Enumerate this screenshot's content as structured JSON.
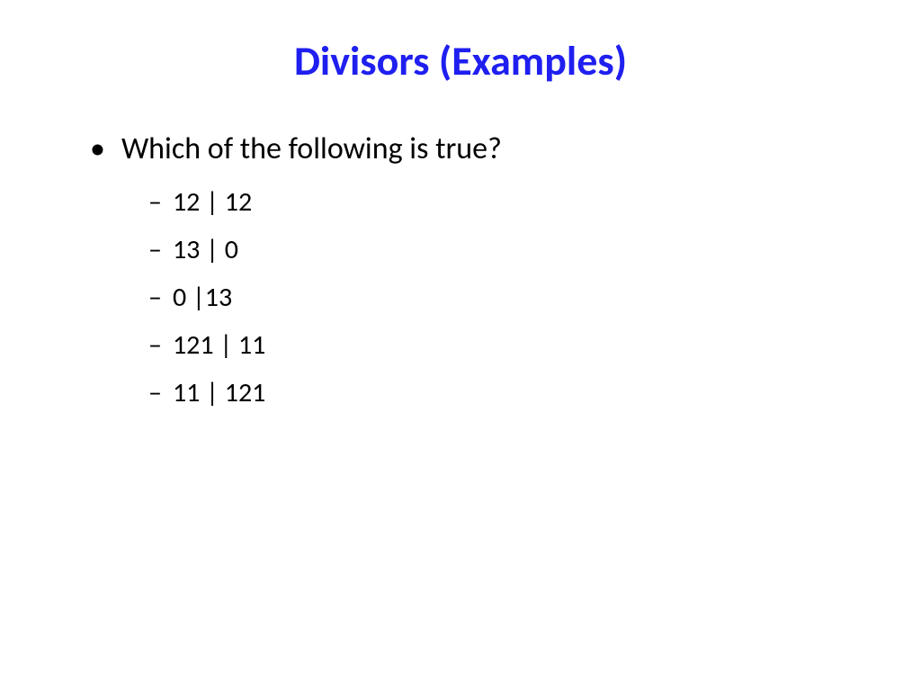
{
  "title": {
    "text": "Divisors (Examples)",
    "color": "#1f1ff0",
    "fontsize": 46
  },
  "main_bullet": {
    "text": "Which of the following is true?",
    "color": "#000000",
    "fontsize": 34,
    "bullet_char": "•"
  },
  "sub_items": {
    "color": "#000000",
    "fontsize": 30,
    "dash_char": "–",
    "items": [
      "12 | 12",
      "13 | 0",
      "0 |13",
      "121 | 11",
      "11 | 121"
    ]
  },
  "background_color": "#ffffff"
}
